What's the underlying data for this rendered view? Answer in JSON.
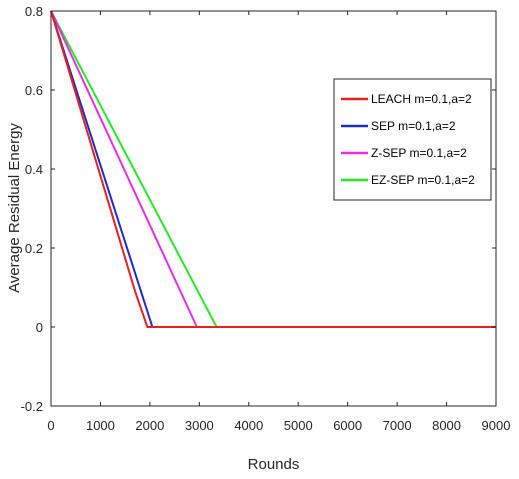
{
  "chart_data": {
    "type": "line",
    "title": "",
    "xlabel": "Rounds",
    "ylabel": "Average Residual Energy",
    "xlim": [
      0,
      9000
    ],
    "ylim": [
      -0.2,
      0.8
    ],
    "xticks": [
      0,
      1000,
      2000,
      3000,
      4000,
      5000,
      6000,
      7000,
      8000,
      9000
    ],
    "xtick_labels": [
      "0",
      "1000",
      "2000",
      "3000",
      "4000",
      "5000",
      "6000",
      "7000",
      "8000",
      "9000"
    ],
    "yticks": [
      0.8,
      0.6,
      0.4,
      0.2,
      0,
      -0.2
    ],
    "ytick_labels": [
      "0.8",
      "0.6",
      "0.4",
      "0.2",
      "0",
      "-0.2"
    ],
    "grid": false,
    "legend_position": "upper-right",
    "series": [
      {
        "name": "LEACH  m=0.1,a=2",
        "color": "#e8201e",
        "x": [
          0,
          1700,
          1950,
          9000
        ],
        "y": [
          0.8,
          0.09,
          0,
          0
        ]
      },
      {
        "name": "SEP  m=0.1,a=2",
        "color": "#1e2bc8",
        "x": [
          0,
          2050,
          9000
        ],
        "y": [
          0.8,
          0,
          0
        ]
      },
      {
        "name": "Z-SEP  m=0.1,a=2",
        "color": "#e62ee6",
        "x": [
          0,
          2950,
          9000
        ],
        "y": [
          0.8,
          0,
          0
        ]
      },
      {
        "name": "EZ-SEP  m=0.1,a=2",
        "color": "#27e827",
        "x": [
          0,
          3350,
          9000
        ],
        "y": [
          0.8,
          0,
          0
        ]
      }
    ]
  }
}
